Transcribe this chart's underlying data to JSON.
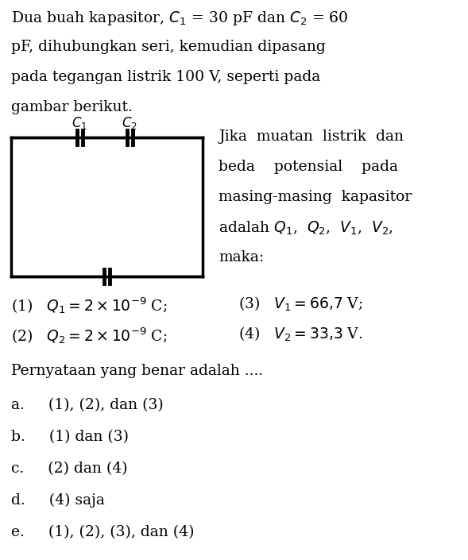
{
  "background_color": "#ffffff",
  "figsize": [
    5.89,
    7.05
  ],
  "dpi": 100,
  "font_color": "#000000",
  "font_size_main": 13.5,
  "para_lines": [
    "Dua buah kapasitor, $C_1$ = 30 pF dan $C_2$ = 60",
    "pF, dihubungkan seri, kemudian dipasang",
    "pada tegangan listrik 100 V, seperti pada",
    "gambar berikut."
  ],
  "circuit_text_lines": [
    "Jika  muatan  listrik  dan",
    "beda    potensial    pada",
    "masing-masing  kapasitor",
    "adalah $Q_1$,  $Q_2$,  $V_1$,  $V_2$,",
    "maka:"
  ],
  "stmt_left": [
    "(1)   $Q_1 = 2 \\times 10^{-9}$ C;",
    "(2)   $Q_2 = 2 \\times 10^{-9}$ C;"
  ],
  "stmt_right": [
    "(3)   $V_1 = 66{,}7$ V;",
    "(4)   $V_2 = 33{,}3$ V."
  ],
  "question": "Pernyataan yang benar adalah ....",
  "options": [
    "a.     (1), (2), dan (3)",
    "b.     (1) dan (3)",
    "c.     (2) dan (4)",
    "d.     (4) saja",
    "e.     (1), (2), (3), dan (4)"
  ]
}
